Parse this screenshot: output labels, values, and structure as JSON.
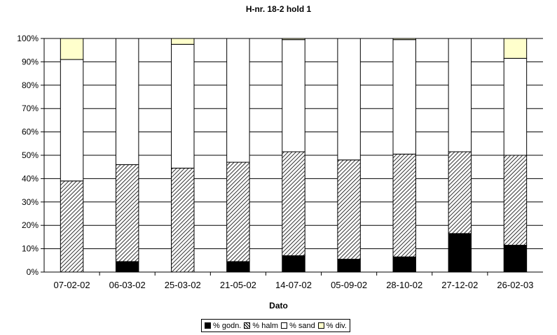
{
  "chart_data": {
    "type": "bar",
    "stacked": true,
    "title": "H-nr. 18-2 hold 1",
    "xlabel": "Dato",
    "ylabel": "",
    "ylim": [
      0,
      100
    ],
    "yticks": [
      "0%",
      "10%",
      "20%",
      "30%",
      "40%",
      "50%",
      "60%",
      "70%",
      "80%",
      "90%",
      "100%"
    ],
    "grid": true,
    "legend_position": "bottom",
    "categories": [
      "07-02-02",
      "06-03-02",
      "25-03-02",
      "21-05-02",
      "14-07-02",
      "05-09-02",
      "28-10-02",
      "27-12-02",
      "26-02-03"
    ],
    "series": [
      {
        "name": "% godn.",
        "color": "#000000",
        "values": [
          0,
          4.5,
          0,
          4.5,
          7,
          5.5,
          6.5,
          16.5,
          11.5
        ]
      },
      {
        "name": "% halm",
        "color": "#hatched",
        "values": [
          39,
          41.5,
          44.5,
          42.5,
          44.5,
          42.5,
          44,
          35,
          38.5
        ]
      },
      {
        "name": "% sand",
        "color": "#ffffff",
        "values": [
          52,
          54,
          53,
          53,
          48,
          52,
          49,
          48.5,
          41.5
        ]
      },
      {
        "name": "% div.",
        "color": "#ffffcc",
        "values": [
          9,
          0,
          2.5,
          0,
          0.5,
          0,
          0.5,
          0,
          8.5
        ]
      }
    ]
  }
}
